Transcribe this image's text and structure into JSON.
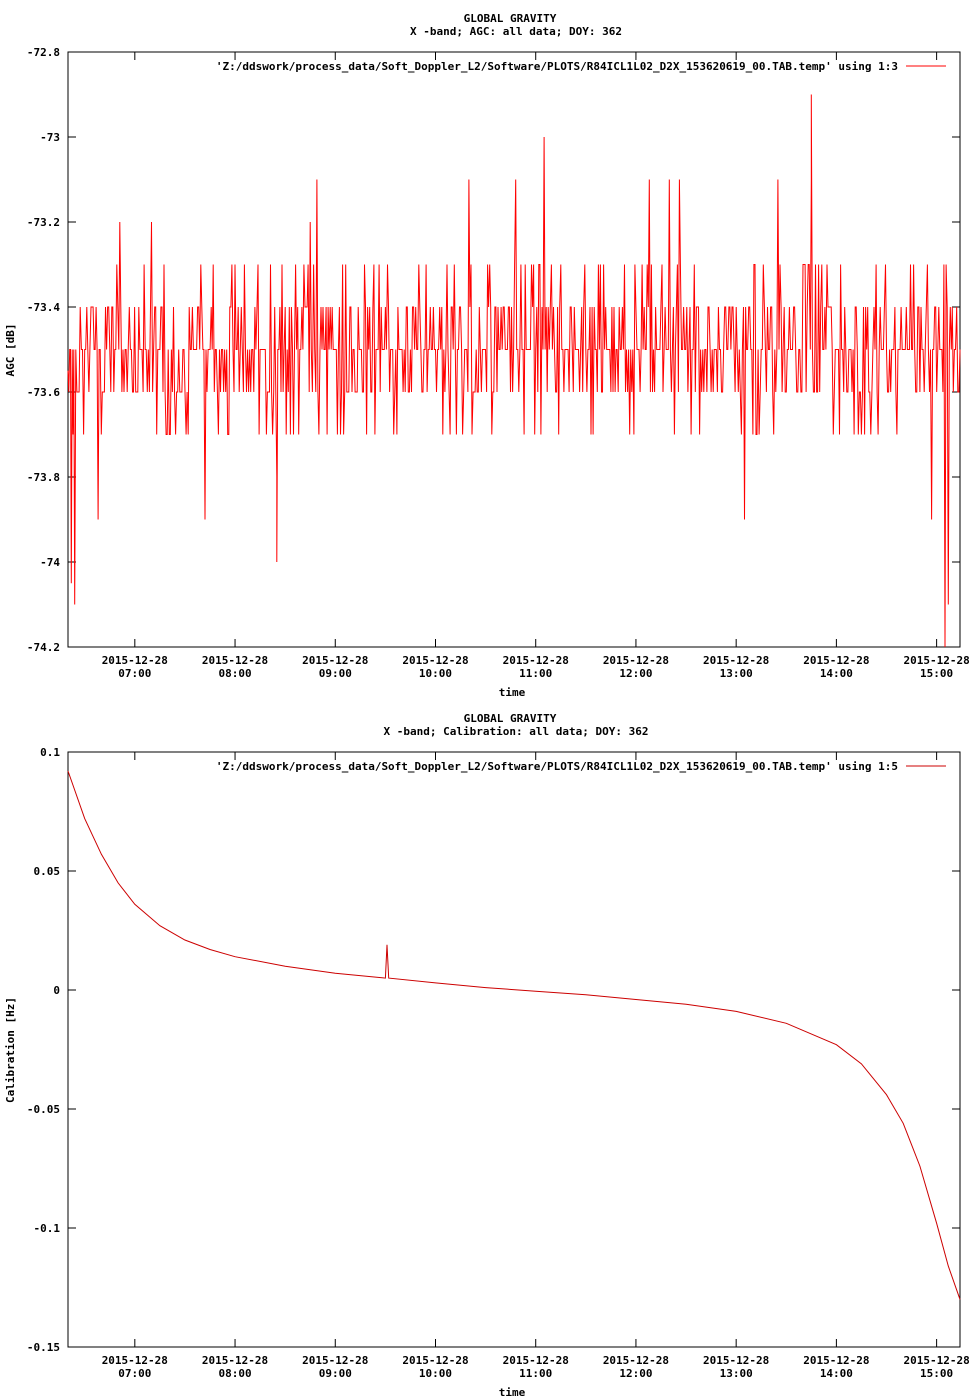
{
  "chart_data": [
    {
      "type": "line",
      "title": "GLOBAL GRAVITY",
      "subtitle": "X -band; AGC: all data; DOY: 362",
      "xlabel": "time",
      "ylabel": "AGC [dB]",
      "ylim": [
        -74.2,
        -72.8
      ],
      "xlim": [
        "2015-12-28 06:20",
        "2015-12-28 15:14"
      ],
      "y_ticks": [
        {
          "value": -72.8,
          "label": "-72.8"
        },
        {
          "value": -73.0,
          "label": "-73"
        },
        {
          "value": -73.2,
          "label": "-73.2"
        },
        {
          "value": -73.4,
          "label": "-73.4"
        },
        {
          "value": -73.6,
          "label": "-73.6"
        },
        {
          "value": -73.8,
          "label": "-73.8"
        },
        {
          "value": -74.0,
          "label": "-74"
        },
        {
          "value": -74.2,
          "label": "-74.2"
        }
      ],
      "x_ticks": [
        {
          "value": "2015-12-28 07:00",
          "date": "2015-12-28",
          "time": "07:00"
        },
        {
          "value": "2015-12-28 08:00",
          "date": "2015-12-28",
          "time": "08:00"
        },
        {
          "value": "2015-12-28 09:00",
          "date": "2015-12-28",
          "time": "09:00"
        },
        {
          "value": "2015-12-28 10:00",
          "date": "2015-12-28",
          "time": "10:00"
        },
        {
          "value": "2015-12-28 11:00",
          "date": "2015-12-28",
          "time": "11:00"
        },
        {
          "value": "2015-12-28 12:00",
          "date": "2015-12-28",
          "time": "12:00"
        },
        {
          "value": "2015-12-28 13:00",
          "date": "2015-12-28",
          "time": "13:00"
        },
        {
          "value": "2015-12-28 14:00",
          "date": "2015-12-28",
          "time": "14:00"
        },
        {
          "value": "2015-12-28 15:00",
          "date": "2015-12-28",
          "time": "15:00"
        }
      ],
      "legend_position": "top-right",
      "series": [
        {
          "name": "'Z:/ddswork/process_data/Soft_Doppler_L2/Software/PLOTS/R84ICL1L02_D2X_153620619_00.TAB.temp' using 1:3",
          "color": "#ff0000",
          "typical_range": [
            -73.6,
            -73.4
          ],
          "points": [
            [
              "2015-12-28 06:20",
              -73.55
            ],
            [
              "2015-12-28 06:21",
              -73.5
            ],
            [
              "2015-12-28 06:22",
              -74.05
            ],
            [
              "2015-12-28 06:23",
              -73.7
            ],
            [
              "2015-12-28 06:24",
              -74.1
            ],
            [
              "2015-12-28 06:26",
              -73.6
            ],
            [
              "2015-12-28 06:30",
              -73.5
            ],
            [
              "2015-12-28 06:35",
              -73.4
            ],
            [
              "2015-12-28 06:38",
              -73.9
            ],
            [
              "2015-12-28 06:45",
              -73.5
            ],
            [
              "2015-12-28 06:51",
              -73.2
            ],
            [
              "2015-12-28 07:10",
              -73.2
            ],
            [
              "2015-12-28 07:20",
              -73.5
            ],
            [
              "2015-12-28 07:42",
              -73.9
            ],
            [
              "2015-12-28 07:55",
              -73.5
            ],
            [
              "2015-12-28 08:15",
              -73.5
            ],
            [
              "2015-12-28 08:25",
              -73.8
            ],
            [
              "2015-12-28 08:25",
              -74.0
            ],
            [
              "2015-12-28 08:45",
              -73.2
            ],
            [
              "2015-12-28 08:49",
              -73.1
            ],
            [
              "2015-12-28 09:00",
              -73.5
            ],
            [
              "2015-12-28 09:30",
              -73.4
            ],
            [
              "2015-12-28 10:00",
              -73.5
            ],
            [
              "2015-12-28 10:20",
              -73.1
            ],
            [
              "2015-12-28 10:48",
              -73.1
            ],
            [
              "2015-12-28 11:00",
              -73.5
            ],
            [
              "2015-12-28 11:05",
              -73.0
            ],
            [
              "2015-12-28 11:30",
              -73.5
            ],
            [
              "2015-12-28 12:00",
              -73.4
            ],
            [
              "2015-12-28 12:08",
              -73.1
            ],
            [
              "2015-12-28 12:20",
              -73.1
            ],
            [
              "2015-12-28 12:26",
              -73.1
            ],
            [
              "2015-12-28 12:40",
              -73.5
            ],
            [
              "2015-12-28 13:00",
              -73.4
            ],
            [
              "2015-12-28 13:05",
              -73.9
            ],
            [
              "2015-12-28 13:25",
              -73.1
            ],
            [
              "2015-12-28 13:45",
              -73.1
            ],
            [
              "2015-12-28 13:45",
              -72.9
            ],
            [
              "2015-12-28 14:00",
              -73.5
            ],
            [
              "2015-12-28 14:30",
              -73.5
            ],
            [
              "2015-12-28 14:50",
              -73.6
            ],
            [
              "2015-12-28 14:57",
              -73.9
            ],
            [
              "2015-12-28 15:05",
              -74.2
            ],
            [
              "2015-12-28 15:07",
              -74.1
            ],
            [
              "2015-12-28 15:10",
              -73.6
            ],
            [
              "2015-12-28 15:14",
              -73.5
            ]
          ]
        }
      ]
    },
    {
      "type": "line",
      "title": "GLOBAL GRAVITY",
      "subtitle": "X -band; Calibration: all data; DOY: 362",
      "xlabel": "time",
      "ylabel": "Calibration [Hz]",
      "ylim": [
        -0.15,
        0.1
      ],
      "xlim": [
        "2015-12-28 06:20",
        "2015-12-28 15:14"
      ],
      "y_ticks": [
        {
          "value": 0.1,
          "label": "0.1"
        },
        {
          "value": 0.05,
          "label": "0.05"
        },
        {
          "value": 0.0,
          "label": "0"
        },
        {
          "value": -0.05,
          "label": "-0.05"
        },
        {
          "value": -0.1,
          "label": "-0.1"
        },
        {
          "value": -0.15,
          "label": "-0.15"
        }
      ],
      "x_ticks": [
        {
          "value": "2015-12-28 07:00",
          "date": "2015-12-28",
          "time": "07:00"
        },
        {
          "value": "2015-12-28 08:00",
          "date": "2015-12-28",
          "time": "08:00"
        },
        {
          "value": "2015-12-28 09:00",
          "date": "2015-12-28",
          "time": "09:00"
        },
        {
          "value": "2015-12-28 10:00",
          "date": "2015-12-28",
          "time": "10:00"
        },
        {
          "value": "2015-12-28 11:00",
          "date": "2015-12-28",
          "time": "11:00"
        },
        {
          "value": "2015-12-28 12:00",
          "date": "2015-12-28",
          "time": "12:00"
        },
        {
          "value": "2015-12-28 13:00",
          "date": "2015-12-28",
          "time": "13:00"
        },
        {
          "value": "2015-12-28 14:00",
          "date": "2015-12-28",
          "time": "14:00"
        },
        {
          "value": "2015-12-28 15:00",
          "date": "2015-12-28",
          "time": "15:00"
        }
      ],
      "legend_position": "top-right",
      "series": [
        {
          "name": "'Z:/ddswork/process_data/Soft_Doppler_L2/Software/PLOTS/R84ICL1L02_D2X_153620619_00.TAB.temp' using 1:5",
          "color": "#cc0000",
          "points": [
            [
              "2015-12-28 06:20",
              0.092
            ],
            [
              "2015-12-28 06:30",
              0.072
            ],
            [
              "2015-12-28 06:40",
              0.057
            ],
            [
              "2015-12-28 06:50",
              0.045
            ],
            [
              "2015-12-28 07:00",
              0.036
            ],
            [
              "2015-12-28 07:15",
              0.027
            ],
            [
              "2015-12-28 07:30",
              0.021
            ],
            [
              "2015-12-28 07:45",
              0.017
            ],
            [
              "2015-12-28 08:00",
              0.014
            ],
            [
              "2015-12-28 08:30",
              0.01
            ],
            [
              "2015-12-28 09:00",
              0.007
            ],
            [
              "2015-12-28 09:30",
              0.005
            ],
            [
              "2015-12-28 09:31",
              0.019
            ],
            [
              "2015-12-28 09:32",
              0.005
            ],
            [
              "2015-12-28 10:00",
              0.003
            ],
            [
              "2015-12-28 10:30",
              0.001
            ],
            [
              "2015-12-28 11:00",
              -0.0005
            ],
            [
              "2015-12-28 11:30",
              -0.002
            ],
            [
              "2015-12-28 12:00",
              -0.004
            ],
            [
              "2015-12-28 12:30",
              -0.006
            ],
            [
              "2015-12-28 13:00",
              -0.009
            ],
            [
              "2015-12-28 13:30",
              -0.014
            ],
            [
              "2015-12-28 14:00",
              -0.023
            ],
            [
              "2015-12-28 14:15",
              -0.031
            ],
            [
              "2015-12-28 14:30",
              -0.044
            ],
            [
              "2015-12-28 14:40",
              -0.056
            ],
            [
              "2015-12-28 14:50",
              -0.074
            ],
            [
              "2015-12-28 15:00",
              -0.098
            ],
            [
              "2015-12-28 15:07",
              -0.116
            ],
            [
              "2015-12-28 15:14",
              -0.13
            ]
          ]
        }
      ]
    }
  ]
}
